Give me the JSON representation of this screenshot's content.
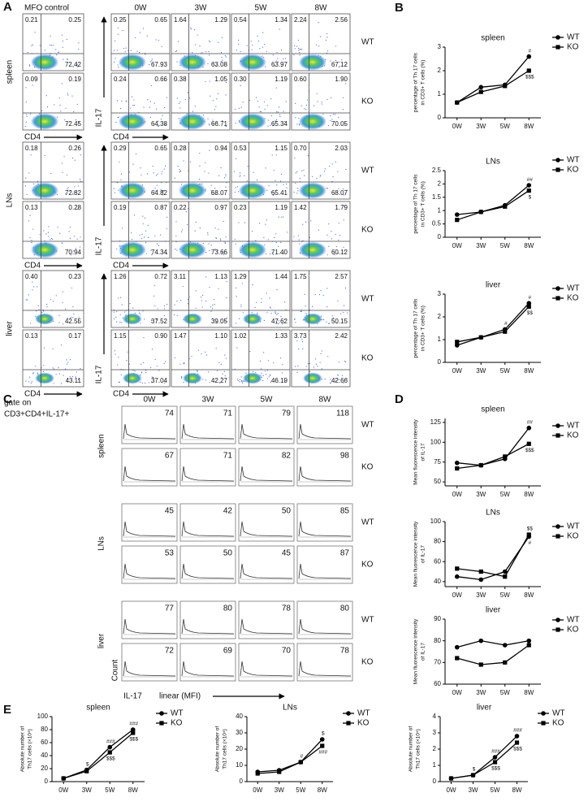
{
  "panel_labels": [
    "A",
    "B",
    "C",
    "D",
    "E"
  ],
  "flow": {
    "columns": [
      "MFO control",
      "0W",
      "3W",
      "5W",
      "8W"
    ],
    "x_axis": "CD4",
    "y_axis": "IL-17",
    "organs": [
      {
        "name": "spleen",
        "rows": [
          {
            "group": "WT",
            "plots": [
              [
                "0.21",
                "0.25",
                "72.42"
              ],
              [
                "0.25",
                "0.65",
                "67.93"
              ],
              [
                "1.64",
                "1.29",
                "63.08"
              ],
              [
                "0.54",
                "1.34",
                "63.97"
              ],
              [
                "2.24",
                "2.56",
                "67.12"
              ]
            ]
          },
          {
            "group": "KO",
            "plots": [
              [
                "0.09",
                "0.19",
                "72.45"
              ],
              [
                "0.24",
                "0.66",
                "64.38"
              ],
              [
                "0.38",
                "1.05",
                "66.71"
              ],
              [
                "0.30",
                "1.19",
                "65.34"
              ],
              [
                "0.60",
                "1.90",
                "70.05"
              ]
            ]
          }
        ]
      },
      {
        "name": "LNs",
        "rows": [
          {
            "group": "WT",
            "plots": [
              [
                "0.18",
                "0.26",
                "72.82"
              ],
              [
                "0.29",
                "0.65",
                "64.82"
              ],
              [
                "0.28",
                "0.94",
                "68.07"
              ],
              [
                "0.53",
                "1.15",
                "65.41"
              ],
              [
                "0.70",
                "2.03",
                "68.07"
              ]
            ]
          },
          {
            "group": "KO",
            "plots": [
              [
                "0.13",
                "0.28",
                "70.94"
              ],
              [
                "0.19",
                "0.87",
                "74.34"
              ],
              [
                "0.22",
                "0.97",
                "73.66"
              ],
              [
                "0.23",
                "1.19",
                "71.40"
              ],
              [
                "1.42",
                "1.79",
                "60.12"
              ]
            ]
          }
        ]
      },
      {
        "name": "liver",
        "rows": [
          {
            "group": "WT",
            "plots": [
              [
                "0.40",
                "0.23",
                "42.55"
              ],
              [
                "1.26",
                "0.72",
                "37.52"
              ],
              [
                "3.11",
                "1.13",
                "39.05"
              ],
              [
                "1.29",
                "1.44",
                "47.62"
              ],
              [
                "1.75",
                "2.57",
                "50.15"
              ]
            ]
          },
          {
            "group": "KO",
            "plots": [
              [
                "0.13",
                "0.17",
                "43.11"
              ],
              [
                "1.15",
                "0.90",
                "37.04"
              ],
              [
                "1.47",
                "1.10",
                "42.27"
              ],
              [
                "1.02",
                "1.33",
                "46.19"
              ],
              [
                "3.73",
                "2.42",
                "42.66"
              ]
            ]
          }
        ]
      }
    ]
  },
  "histogram": {
    "gate": [
      "gate on",
      "CD3+CD4+IL-17+"
    ],
    "columns": [
      "0W",
      "3W",
      "5W",
      "8W"
    ],
    "y_axis": "Count",
    "x_axis": "IL-17",
    "x_axis_note": "linear (MFI)",
    "organs": [
      {
        "name": "spleen",
        "rows": [
          {
            "group": "WT",
            "values": [
              "74",
              "71",
              "79",
              "118"
            ]
          },
          {
            "group": "KO",
            "values": [
              "67",
              "71",
              "82",
              "98"
            ]
          }
        ]
      },
      {
        "name": "LNs",
        "rows": [
          {
            "group": "WT",
            "values": [
              "45",
              "42",
              "50",
              "85"
            ]
          },
          {
            "group": "KO",
            "values": [
              "53",
              "50",
              "45",
              "87"
            ]
          }
        ]
      },
      {
        "name": "liver",
        "rows": [
          {
            "group": "WT",
            "values": [
              "77",
              "80",
              "78",
              "80"
            ]
          },
          {
            "group": "KO",
            "values": [
              "72",
              "69",
              "70",
              "78"
            ]
          }
        ]
      }
    ]
  },
  "chart_data": [
    {
      "type": "line",
      "title": "spleen",
      "ylabel": [
        "percentage of Th 17 cells",
        "in CD3+ T cells (%)"
      ],
      "categories": [
        "0W",
        "3W",
        "5W",
        "8W"
      ],
      "ylim": [
        0,
        3
      ],
      "yticks": [
        0,
        1,
        2,
        3
      ],
      "series": [
        {
          "name": "WT",
          "color": "#000000",
          "marker": "circle",
          "values": [
            0.65,
            1.3,
            1.4,
            2.6
          ]
        },
        {
          "name": "KO",
          "color": "#000000",
          "marker": "square",
          "values": [
            0.65,
            1.1,
            1.35,
            2.0
          ]
        }
      ],
      "annotations": [
        {
          "text": "#",
          "x": "8W",
          "side": "above"
        },
        {
          "text": "$$$",
          "x": "8W",
          "side": "below"
        }
      ]
    },
    {
      "type": "line",
      "title": "LNs",
      "ylabel": [
        "percentage of Th 17 cells",
        "in CD3+ T cells (%)"
      ],
      "categories": [
        "0W",
        "3W",
        "5W",
        "8W"
      ],
      "ylim": [
        0,
        2.5
      ],
      "yticks": [
        0,
        0.5,
        1,
        1.5,
        2,
        2.5
      ],
      "series": [
        {
          "name": "WT",
          "color": "#000000",
          "marker": "circle",
          "values": [
            0.85,
            0.95,
            1.2,
            1.95
          ]
        },
        {
          "name": "KO",
          "color": "#000000",
          "marker": "square",
          "values": [
            0.65,
            0.95,
            1.15,
            1.75
          ]
        }
      ],
      "annotations": [
        {
          "text": "##",
          "x": "8W",
          "side": "above"
        },
        {
          "text": "$",
          "x": "8W",
          "side": "below"
        }
      ]
    },
    {
      "type": "line",
      "title": "liver",
      "ylabel": [
        "percentage of Th 17 cells",
        "in CD3+ T cells (%)"
      ],
      "categories": [
        "0W",
        "3W",
        "5W",
        "8W"
      ],
      "ylim": [
        0,
        3
      ],
      "yticks": [
        0,
        1,
        2,
        3
      ],
      "series": [
        {
          "name": "WT",
          "color": "#000000",
          "marker": "circle",
          "values": [
            0.75,
            1.1,
            1.45,
            2.6
          ]
        },
        {
          "name": "KO",
          "color": "#000000",
          "marker": "square",
          "values": [
            0.9,
            1.1,
            1.35,
            2.45
          ]
        }
      ],
      "annotations": [
        {
          "text": "#",
          "x": "5W",
          "side": "above"
        },
        {
          "text": "#",
          "x": "8W",
          "side": "above"
        },
        {
          "text": "$$",
          "x": "8W",
          "side": "below"
        }
      ]
    },
    {
      "type": "line",
      "title": "spleen",
      "ylabel": [
        "Mean fluorescence intensity",
        "of IL-17"
      ],
      "categories": [
        "0W",
        "3W",
        "5W",
        "8W"
      ],
      "ylim": [
        45,
        130
      ],
      "yticks": [
        50,
        75,
        100,
        125
      ],
      "series": [
        {
          "name": "WT",
          "color": "#000000",
          "marker": "circle",
          "values": [
            74,
            71,
            79,
            118
          ]
        },
        {
          "name": "KO",
          "color": "#000000",
          "marker": "square",
          "values": [
            67,
            71,
            82,
            98
          ]
        }
      ],
      "annotations": [
        {
          "text": "##",
          "x": "8W",
          "side": "above"
        },
        {
          "text": "$$$",
          "x": "8W",
          "side": "below"
        }
      ]
    },
    {
      "type": "line",
      "title": "LNs",
      "ylabel": [
        "Mean fluorescence intensity",
        "of IL-17"
      ],
      "categories": [
        "0W",
        "3W",
        "5W",
        "8W"
      ],
      "ylim": [
        35,
        100
      ],
      "yticks": [
        40,
        60,
        80,
        100
      ],
      "series": [
        {
          "name": "WT",
          "color": "#000000",
          "marker": "circle",
          "values": [
            45,
            42,
            50,
            85
          ]
        },
        {
          "name": "KO",
          "color": "#000000",
          "marker": "square",
          "values": [
            53,
            50,
            45,
            87
          ]
        }
      ],
      "annotations": [
        {
          "text": "$$",
          "x": "8W",
          "side": "above"
        },
        {
          "text": "#",
          "x": "8W",
          "side": "below"
        }
      ]
    },
    {
      "type": "line",
      "title": "liver",
      "ylabel": [
        "Mean fluorescence intensity",
        "of IL-17"
      ],
      "categories": [
        "0W",
        "3W",
        "5W",
        "8W"
      ],
      "ylim": [
        60,
        90
      ],
      "yticks": [
        60,
        70,
        80,
        90
      ],
      "series": [
        {
          "name": "WT",
          "color": "#000000",
          "marker": "circle",
          "values": [
            77,
            80,
            78,
            80
          ]
        },
        {
          "name": "KO",
          "color": "#000000",
          "marker": "square",
          "values": [
            72,
            69,
            70,
            78
          ]
        }
      ],
      "annotations": []
    },
    {
      "type": "line",
      "title": "spleen",
      "ylabel": [
        "Absolute number of",
        "Th17 cells (×10⁴)"
      ],
      "categories": [
        "0W",
        "3W",
        "5W",
        "8W"
      ],
      "ylim": [
        0,
        100
      ],
      "yticks": [
        0,
        20,
        40,
        60,
        80,
        100
      ],
      "series": [
        {
          "name": "WT",
          "color": "#000000",
          "marker": "circle",
          "values": [
            5,
            18,
            53,
            80
          ]
        },
        {
          "name": "KO",
          "color": "#000000",
          "marker": "square",
          "values": [
            5,
            16,
            45,
            75
          ]
        }
      ],
      "annotations": [
        {
          "text": "$",
          "x": "3W",
          "side": "above"
        },
        {
          "text": "###",
          "x": "5W",
          "side": "above"
        },
        {
          "text": "$$$",
          "x": "5W",
          "side": "below"
        },
        {
          "text": "###",
          "x": "8W",
          "side": "above"
        },
        {
          "text": "$$$",
          "x": "8W",
          "side": "below"
        }
      ]
    },
    {
      "type": "line",
      "title": "LNs",
      "ylabel": [
        "Absolute number of",
        "Th17 cells (×10⁴)"
      ],
      "categories": [
        "0W",
        "3W",
        "5W",
        "8W"
      ],
      "ylim": [
        0,
        40
      ],
      "yticks": [
        0,
        10,
        20,
        30,
        40
      ],
      "series": [
        {
          "name": "WT",
          "color": "#000000",
          "marker": "circle",
          "values": [
            6,
            7,
            12,
            26
          ]
        },
        {
          "name": "KO",
          "color": "#000000",
          "marker": "square",
          "values": [
            5,
            6,
            12,
            22
          ]
        }
      ],
      "annotations": [
        {
          "text": "#",
          "x": "5W",
          "side": "above"
        },
        {
          "text": "$",
          "x": "8W",
          "side": "above"
        },
        {
          "text": "###",
          "x": "8W",
          "side": "below"
        }
      ]
    },
    {
      "type": "line",
      "title": "liver",
      "ylabel": [
        "Absolute number of",
        "Th17 cells (×10⁴)"
      ],
      "categories": [
        "0W",
        "3W",
        "5W",
        "8W"
      ],
      "ylim": [
        0,
        4
      ],
      "yticks": [
        0,
        1,
        2,
        3,
        4
      ],
      "series": [
        {
          "name": "WT",
          "color": "#000000",
          "marker": "circle",
          "values": [
            0.2,
            0.4,
            1.5,
            2.8
          ]
        },
        {
          "name": "KO",
          "color": "#000000",
          "marker": "square",
          "values": [
            0.2,
            0.4,
            1.2,
            2.4
          ]
        }
      ],
      "annotations": [
        {
          "text": "$",
          "x": "3W",
          "side": "above"
        },
        {
          "text": "###",
          "x": "5W",
          "side": "above"
        },
        {
          "text": "$$$",
          "x": "5W",
          "side": "below"
        },
        {
          "text": "###",
          "x": "8W",
          "side": "above"
        },
        {
          "text": "$$$",
          "x": "8W",
          "side": "below"
        }
      ]
    }
  ]
}
